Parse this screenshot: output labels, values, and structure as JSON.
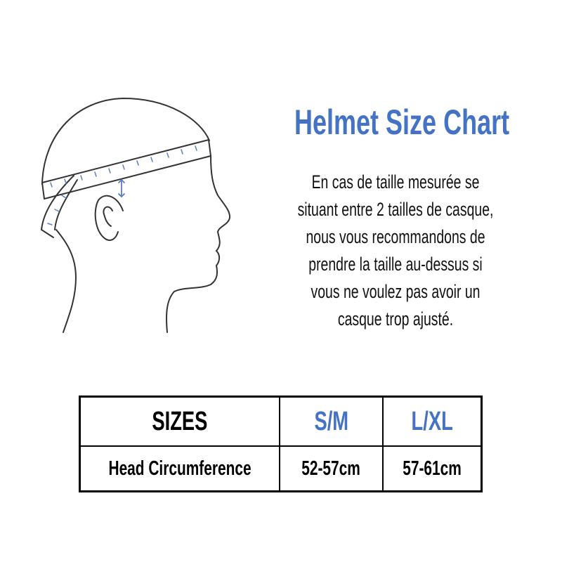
{
  "title": "Helmet Size Chart",
  "description_lines": [
    "En cas de taille mesurée se",
    "situant entre 2 tailles de casque,",
    "nous vous recommandons de",
    "prendre la taille au-dessus si",
    "vous ne voulez pas avoir un",
    "casque trop ajusté."
  ],
  "table": {
    "headers": [
      "SIZES",
      "S/M",
      "L/XL"
    ],
    "rows": [
      [
        "Head Circumference",
        "52-57cm",
        "57-61cm"
      ]
    ]
  },
  "colors": {
    "accent": "#4472c4",
    "text": "#111111",
    "line": "#333333"
  },
  "illustration": "head-measurement-icon"
}
